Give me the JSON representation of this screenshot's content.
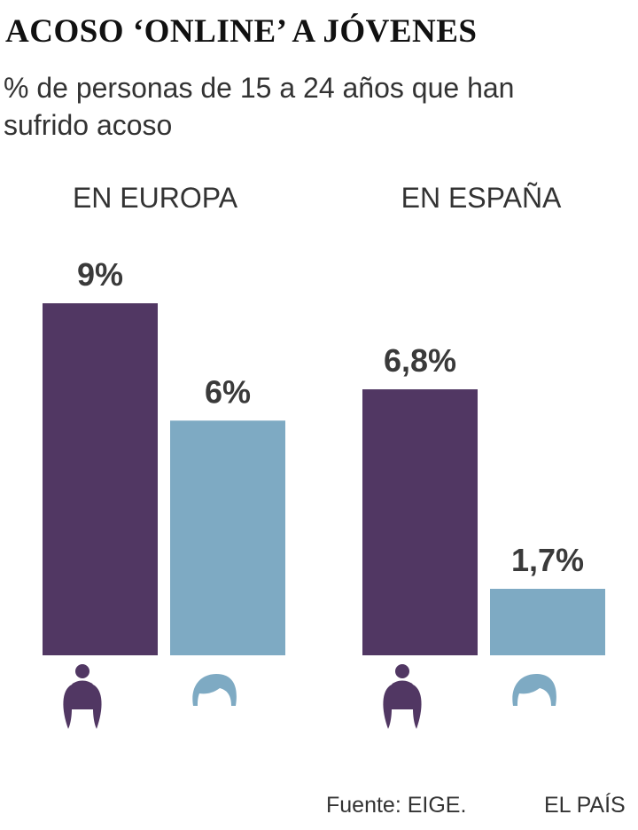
{
  "title": "ACOSO ‘ONLINE’ A JÓVENES",
  "subtitle": "% de personas de 15 a 24 años que han sufrido acoso",
  "source": "Fuente: EIGE.",
  "brand": "EL PAÍS",
  "colors": {
    "women": "#513763",
    "men": "#7eaac3",
    "value_label": "#3a3a3a"
  },
  "icons": {
    "women": "woman-head-icon",
    "men": "man-head-icon"
  },
  "chart_data": {
    "type": "bar",
    "title": "ACOSO ‘ONLINE’ A JÓVENES",
    "subtitle": "% de personas de 15 a 24 años que han sufrido acoso",
    "ylim": [
      0,
      9
    ],
    "grid": false,
    "legend": "icons below bars",
    "groups": [
      {
        "label": "EN EUROPA",
        "bars": [
          {
            "series": "women",
            "value": 9,
            "label": "9%"
          },
          {
            "series": "men",
            "value": 6,
            "label": "6%"
          }
        ]
      },
      {
        "label": "EN ESPAÑA",
        "bars": [
          {
            "series": "women",
            "value": 6.8,
            "label": "6,8%"
          },
          {
            "series": "men",
            "value": 1.7,
            "label": "1,7%"
          }
        ]
      }
    ]
  }
}
